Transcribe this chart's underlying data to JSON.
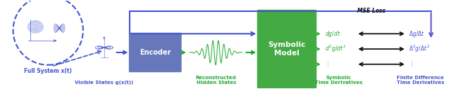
{
  "fig_width": 6.4,
  "fig_height": 1.4,
  "dpi": 100,
  "bg_color": "#ffffff",
  "blue": "#4455cc",
  "green": "#22aa33",
  "black": "#111111",
  "purple": "#6655cc",
  "enc_color": "#6677bb",
  "sym_color": "#44aa44",
  "full_system_label": "Full System x(t)",
  "visible_label": "Visible States g(x(t))",
  "encoder_label": "Encoder",
  "symbolic_label": "Symbolic\nModel",
  "reconstructed_label": "Reconstructed\nHidden States",
  "mse_label": "MSE Loss",
  "sym_deriv_label": "Symbolic\nTime Derivatives",
  "fd_deriv_label": "Finite Difference\nTime Derivatives",
  "green_labels": [
    "$dg/dt$",
    "$d^2g/dt^2$",
    "$\\vdots$"
  ],
  "blue_labels": [
    "$\\Delta g/\\Delta t$",
    "$\\Delta^2 g/\\Delta t^2$",
    "$\\vdots$"
  ]
}
